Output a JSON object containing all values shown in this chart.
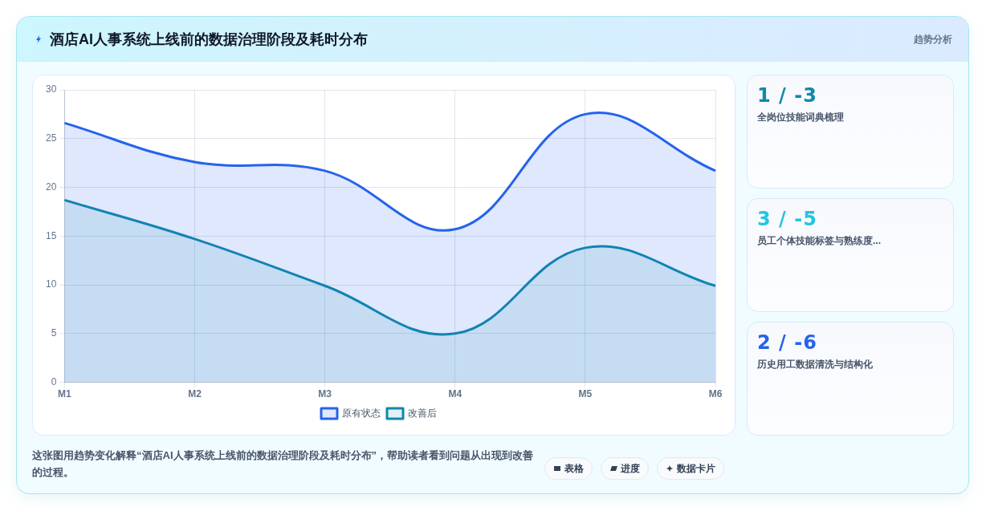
{
  "chart_data": [
    {
      "type": "area",
      "title": "酒店AI人事系统上线前的数据治理阶段及耗时分布",
      "categories": [
        "M1",
        "M2",
        "M3",
        "M4",
        "M5",
        "M6"
      ],
      "series": [
        {
          "name": "原有状态",
          "color": "#2563eb",
          "values": [
            26.6,
            22.6,
            21.7,
            15.7,
            27.5,
            21.7
          ]
        },
        {
          "name": "改善后",
          "color": "#0e89aa",
          "values": [
            18.7,
            14.7,
            9.9,
            5,
            13.8,
            9.9
          ]
        }
      ],
      "ylim": [
        0,
        30
      ],
      "yticks": [
        0,
        5,
        10,
        15,
        20,
        25,
        30
      ],
      "grid": true,
      "legend": "bottom",
      "marker": "none",
      "annotations": [
        "趋势分析",
        "这张图用趋势变化解释“酒店AI人事系统上线前的数据治理阶段及耗时分布”，帮助读者看到问题从出现到改善的过程。",
        "表格",
        "进度",
        "数据卡片"
      ]
    },
    {
      "type": "other",
      "annotations": [
        "1 / -3",
        "全岗位技能词典梳理",
        "3 / -5",
        "员工个体技能标签与熟练度...",
        "2 / -6",
        "历史用工数据清洗与结构化"
      ],
      "colors": [
        "#0e89aa",
        "#22c5e0",
        "#2563eb"
      ]
    }
  ]
}
